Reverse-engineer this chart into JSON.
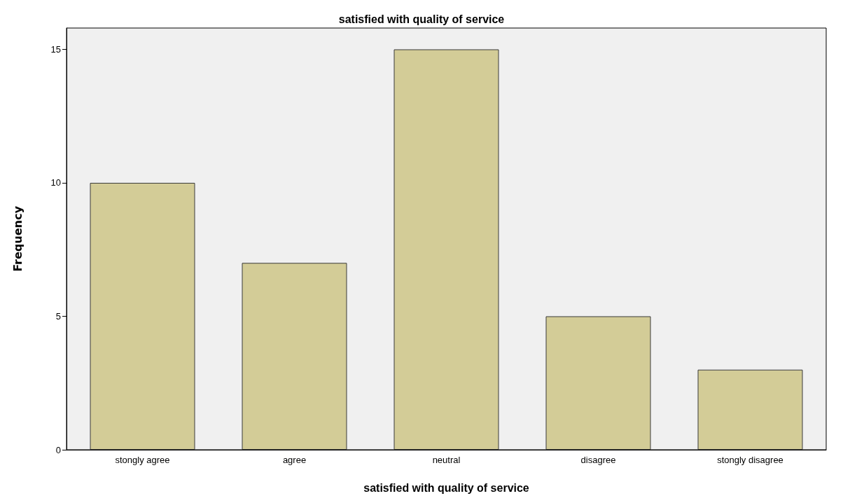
{
  "chart_data": {
    "type": "bar",
    "title": "satisfied with quality of service",
    "xlabel": "satisfied with quality of service",
    "ylabel": "Frequency",
    "categories": [
      "stongly agree",
      "agree",
      "neutral",
      "disagree",
      "stongly disagree"
    ],
    "values": [
      10,
      7,
      15,
      5,
      3
    ],
    "color": "#d3cc97",
    "ylim": [
      0,
      15.8
    ],
    "yticks": [
      0,
      5,
      10,
      15
    ],
    "grid": false
  }
}
